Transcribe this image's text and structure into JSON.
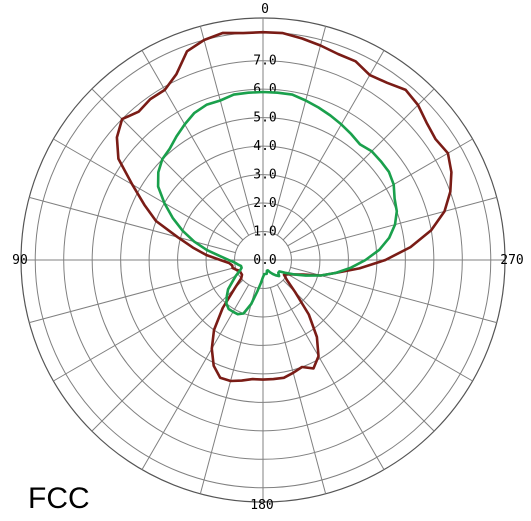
{
  "caption": "FCC",
  "chart_data": {
    "type": "polar-line",
    "angle_labels": {
      "top": "0",
      "left": "90",
      "bottom": "180",
      "right": "270"
    },
    "angle_direction": "counterclockwise",
    "radial_tick_labels": [
      "0.0",
      "1.0",
      "2.0",
      "3.0",
      "4.0",
      "5.0",
      "6.0",
      "7.0"
    ],
    "radial_range": [
      0,
      8.5
    ],
    "angular_grid_step_deg": 15,
    "grid": true,
    "colors": {
      "outer_series": "#7a1c16",
      "inner_series": "#1aa04c",
      "grid": "#808080"
    },
    "series": [
      {
        "color": "#7a1c16",
        "angles": [
          0,
          5,
          10,
          15,
          20,
          25,
          30,
          35,
          40,
          45,
          50,
          55,
          60,
          65,
          70,
          75,
          80,
          85,
          90,
          95,
          100,
          105,
          110,
          115,
          120,
          125,
          130,
          135,
          140,
          145,
          150,
          155,
          160,
          165,
          170,
          175,
          180,
          185,
          190,
          195,
          200,
          205,
          210,
          215,
          220,
          225,
          230,
          235,
          240,
          245,
          250,
          255,
          260,
          265,
          270,
          275,
          280,
          285,
          290,
          295,
          300,
          305,
          310,
          315,
          320,
          325,
          330,
          335,
          340,
          345,
          350,
          355
        ],
        "values": [
          8.0,
          8.0,
          8.1,
          8.0,
          7.8,
          7.2,
          6.9,
          6.9,
          6.8,
          7.0,
          6.7,
          6.2,
          5.3,
          4.6,
          4.0,
          3.1,
          2.5,
          2.0,
          1.5,
          1.2,
          1.1,
          1.1,
          1.0,
          0.9,
          0.9,
          0.9,
          1.0,
          1.4,
          2.2,
          3.0,
          3.6,
          4.1,
          4.4,
          4.4,
          4.3,
          4.2,
          4.2,
          4.2,
          4.2,
          4.1,
          4.0,
          4.2,
          3.9,
          3.3,
          2.5,
          1.6,
          1.1,
          0.9,
          1.0,
          1.2,
          1.5,
          2.1,
          2.6,
          3.4,
          4.3,
          5.2,
          6.0,
          6.6,
          7.0,
          7.3,
          7.5,
          7.4,
          7.5,
          7.7,
          7.8,
          7.6,
          7.5,
          7.7,
          7.7,
          7.8,
          7.9,
          8.0
        ]
      },
      {
        "color": "#1aa04c",
        "angles": [
          0,
          5,
          10,
          15,
          20,
          25,
          30,
          35,
          40,
          45,
          50,
          55,
          60,
          65,
          70,
          75,
          80,
          85,
          90,
          95,
          100,
          105,
          110,
          115,
          120,
          125,
          130,
          135,
          140,
          145,
          150,
          155,
          160,
          165,
          170,
          175,
          180,
          185,
          190,
          195,
          200,
          205,
          210,
          215,
          220,
          225,
          230,
          235,
          240,
          245,
          250,
          255,
          260,
          265,
          270,
          275,
          280,
          285,
          290,
          295,
          300,
          305,
          310,
          315,
          320,
          325,
          330,
          335,
          340,
          345,
          350,
          355
        ],
        "values": [
          5.9,
          5.9,
          5.9,
          5.8,
          5.8,
          5.7,
          5.5,
          5.3,
          5.1,
          5.0,
          4.8,
          4.5,
          4.0,
          3.5,
          3.0,
          2.5,
          2.0,
          1.5,
          1.2,
          1.0,
          0.9,
          0.8,
          0.8,
          0.9,
          1.1,
          1.3,
          1.6,
          1.8,
          2.0,
          2.1,
          2.1,
          2.1,
          2.0,
          1.6,
          1.1,
          0.8,
          0.6,
          0.5,
          0.5,
          0.5,
          0.4,
          0.4,
          0.5,
          0.6,
          0.7,
          0.8,
          0.7,
          0.7,
          0.9,
          1.2,
          1.6,
          2.1,
          2.6,
          3.1,
          3.6,
          4.1,
          4.5,
          4.8,
          5.0,
          5.1,
          5.3,
          5.4,
          5.4,
          5.4,
          5.3,
          5.4,
          5.5,
          5.6,
          5.7,
          5.8,
          5.9,
          5.9
        ]
      }
    ]
  }
}
